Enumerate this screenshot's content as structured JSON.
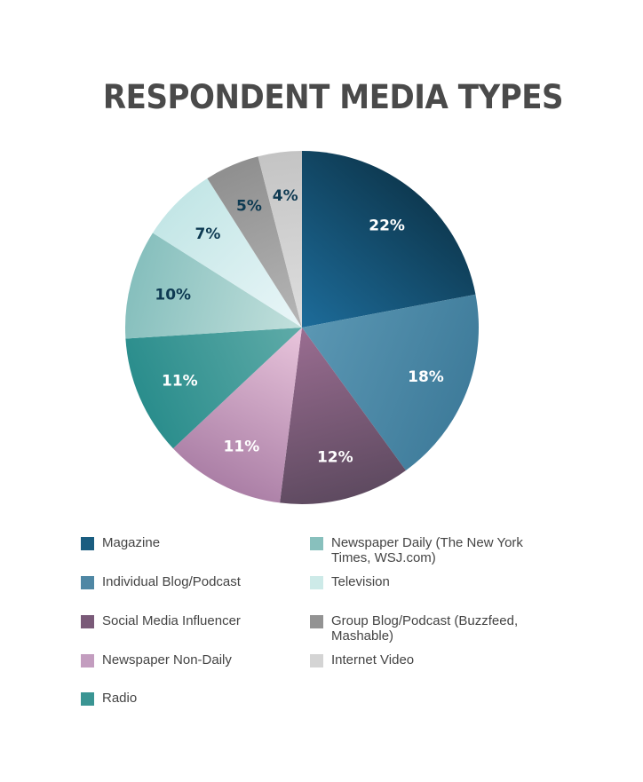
{
  "chart_data": {
    "type": "pie",
    "title": "RESPONDENT MEDIA TYPES",
    "slices": [
      {
        "label": "Magazine",
        "value": 22,
        "display": "22%",
        "color_dark": "#0e3a52",
        "color_light": "#1d6c9a",
        "text_color": "#ffffff"
      },
      {
        "label": "Individual Blog/Podcast",
        "value": 18,
        "display": "18%",
        "color_dark": "#3f7c9b",
        "color_light": "#5b97b3",
        "text_color": "#ffffff"
      },
      {
        "label": "Social Media Influencer",
        "value": 12,
        "display": "12%",
        "color_dark": "#5e4a60",
        "color_light": "#9a6d91",
        "text_color": "#ffffff"
      },
      {
        "label": "Newspaper Non-Daily",
        "value": 11,
        "display": "11%",
        "color_dark": "#ab7fa6",
        "color_light": "#e9c5dc",
        "text_color": "#ffffff"
      },
      {
        "label": "Radio",
        "value": 11,
        "display": "11%",
        "color_dark": "#2a8d8c",
        "color_light": "#5faba8",
        "text_color": "#ffffff"
      },
      {
        "label": "Newspaper Daily (The New York Times, WSJ.com)",
        "value": 10,
        "display": "10%",
        "color_dark": "#86bfbd",
        "color_light": "#c2e0dc",
        "text_color": "#0e3a52"
      },
      {
        "label": "Television",
        "value": 7,
        "display": "7%",
        "color_dark": "#c3e6e6",
        "color_light": "#eaf6f8",
        "text_color": "#0e3a52"
      },
      {
        "label": "Group Blog/Podcast (Buzzfeed, Mashable)",
        "value": 5,
        "display": "5%",
        "color_dark": "#8f8f8f",
        "color_light": "#b6b6b6",
        "text_color": "#0e3a52"
      },
      {
        "label": "Internet Video",
        "value": 4,
        "display": "4%",
        "color_dark": "#c4c4c4",
        "color_light": "#dedede",
        "text_color": "#0e3a52"
      }
    ],
    "legend": [
      {
        "label": "Magazine",
        "color": "#1a5d80"
      },
      {
        "label": "Individual Blog/Podcast",
        "color": "#4f87a4"
      },
      {
        "label": "Social Media Influencer",
        "color": "#7a5a78"
      },
      {
        "label": "Newspaper Non-Daily",
        "color": "#c39dbf"
      },
      {
        "label": "Radio",
        "color": "#3a9593"
      },
      {
        "label": "Newspaper Daily (The New York Times, WSJ.com)",
        "color": "#88c0bd"
      },
      {
        "label": "Television",
        "color": "#cdeae8"
      },
      {
        "label": "Group Blog/Podcast (Buzzfeed, Mashable)",
        "color": "#939393"
      },
      {
        "label": "Internet Video",
        "color": "#d4d4d4"
      }
    ],
    "legend_placement": "bottom"
  }
}
